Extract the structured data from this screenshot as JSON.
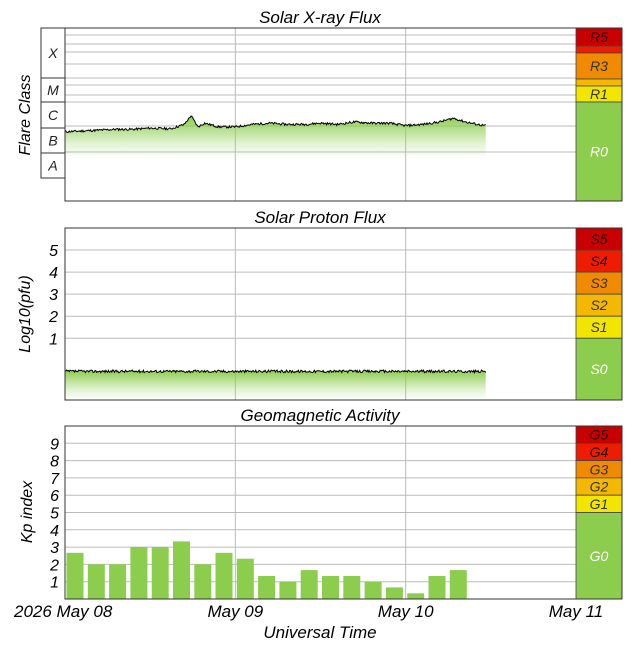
{
  "colors": {
    "green": "#8ccd4e",
    "trace": "#000000",
    "grid": "#bbbbbb",
    "levels": [
      "#8ccd4e",
      "#f2e600",
      "#f5b800",
      "#f08a00",
      "#ee1c00",
      "#c80000"
    ]
  },
  "chart_data": [
    {
      "type": "area",
      "title": "Solar X-ray Flux",
      "ylabel": "Flare Class",
      "xlabel": "",
      "x_ticks": [
        "2026 May 08",
        "May 09",
        "May 10",
        "May 11"
      ],
      "flare_classes": [
        "X",
        "M",
        "C",
        "B",
        "A"
      ],
      "scale_bands": [
        "R0",
        "R1",
        "R2",
        "R3",
        "R4",
        "R5"
      ],
      "band_labels": [
        "R0",
        "R1",
        "",
        "R3",
        "",
        "R5"
      ],
      "x_range_days": [
        0,
        3
      ],
      "data_extent_days": [
        0,
        2.47
      ],
      "log_level_range": [
        -9,
        -2
      ],
      "level_avg": -6.2,
      "series": [
        {
          "x": 0.0,
          "y": -6.2
        },
        {
          "x": 0.15,
          "y": -6.15
        },
        {
          "x": 0.3,
          "y": -6.1
        },
        {
          "x": 0.4,
          "y": -6.1
        },
        {
          "x": 0.5,
          "y": -6.05
        },
        {
          "x": 0.62,
          "y": -6.08
        },
        {
          "x": 0.7,
          "y": -5.9
        },
        {
          "x": 0.74,
          "y": -5.55
        },
        {
          "x": 0.78,
          "y": -6.0
        },
        {
          "x": 0.82,
          "y": -5.85
        },
        {
          "x": 0.9,
          "y": -6.0
        },
        {
          "x": 1.0,
          "y": -6.0
        },
        {
          "x": 1.1,
          "y": -5.9
        },
        {
          "x": 1.2,
          "y": -5.85
        },
        {
          "x": 1.3,
          "y": -5.9
        },
        {
          "x": 1.4,
          "y": -5.9
        },
        {
          "x": 1.5,
          "y": -5.85
        },
        {
          "x": 1.6,
          "y": -5.9
        },
        {
          "x": 1.7,
          "y": -5.8
        },
        {
          "x": 1.8,
          "y": -5.85
        },
        {
          "x": 1.9,
          "y": -5.85
        },
        {
          "x": 2.0,
          "y": -5.95
        },
        {
          "x": 2.1,
          "y": -5.9
        },
        {
          "x": 2.2,
          "y": -5.8
        },
        {
          "x": 2.28,
          "y": -5.65
        },
        {
          "x": 2.35,
          "y": -5.8
        },
        {
          "x": 2.42,
          "y": -5.9
        },
        {
          "x": 2.47,
          "y": -5.95
        }
      ]
    },
    {
      "type": "area",
      "title": "Solar Proton Flux",
      "ylabel": "Log10(pfu)",
      "xlabel": "",
      "y_ticks": [
        "1",
        "2",
        "3",
        "4",
        "5"
      ],
      "scale_bands": [
        "S0",
        "S1",
        "S2",
        "S3",
        "S4",
        "S5"
      ],
      "ylim": [
        -1.8,
        6
      ],
      "x_range_days": [
        0,
        3
      ],
      "data_extent_days": [
        0,
        2.47
      ],
      "level_avg": -0.5
    },
    {
      "type": "bar",
      "title": "Geomagnetic Activity",
      "ylabel": "Kp index",
      "xlabel": "Universal Time",
      "y_ticks": [
        "1",
        "2",
        "3",
        "4",
        "5",
        "6",
        "7",
        "8",
        "9"
      ],
      "scale_bands": [
        "G0",
        "G1",
        "G2",
        "G3",
        "G4",
        "G5"
      ],
      "ylim": [
        0,
        10
      ],
      "x_range_days": [
        0,
        3
      ],
      "bar_days": [
        0.0,
        0.125,
        0.25,
        0.375,
        0.5,
        0.625,
        0.75,
        0.875,
        1.0,
        1.125,
        1.25,
        1.375,
        1.5,
        1.625,
        1.75,
        1.875,
        2.0,
        2.125,
        2.25,
        2.375
      ],
      "values": [
        2.67,
        2.0,
        2.0,
        3.0,
        3.0,
        3.33,
        2.0,
        2.67,
        2.33,
        1.33,
        1.0,
        1.67,
        1.33,
        1.33,
        1.0,
        0.67,
        0.33,
        1.33,
        1.67,
        0
      ]
    }
  ]
}
